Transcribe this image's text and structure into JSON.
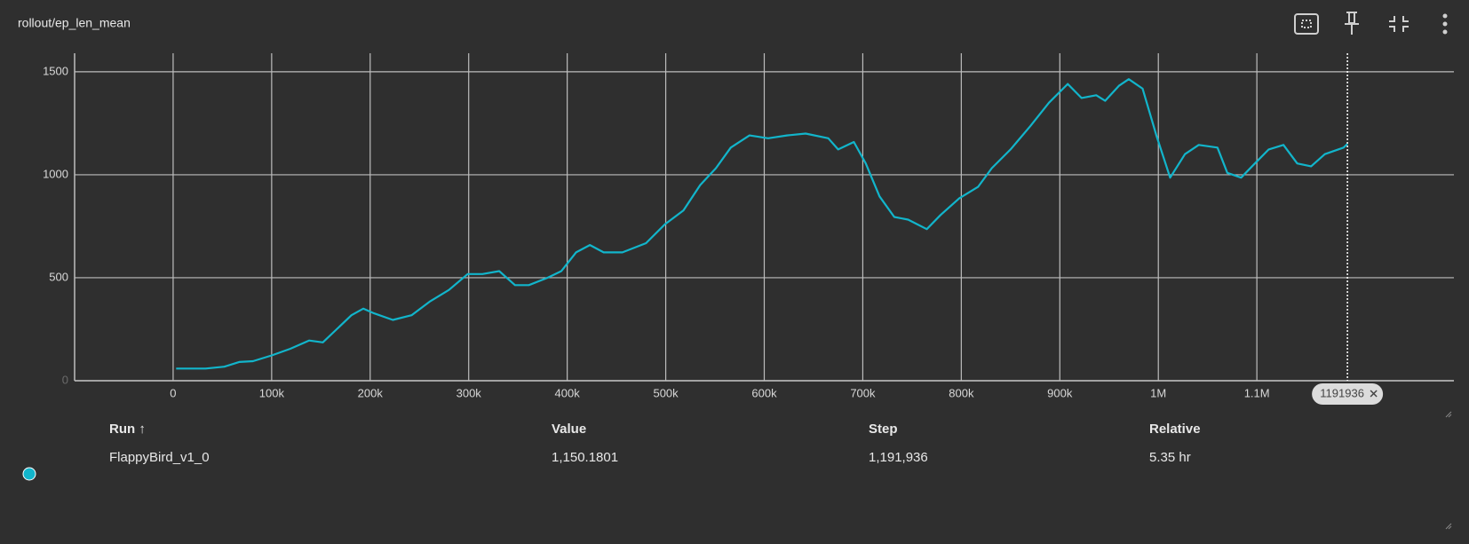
{
  "header": {
    "title": "rollout/ep_len_mean"
  },
  "chart_data": {
    "type": "line",
    "color": "#12b5cb",
    "grid": true,
    "xlim": [
      -100000,
      1300000
    ],
    "ylim": [
      0,
      1590
    ],
    "xticks": [
      0,
      {
        "value": 100000,
        "label": "100k"
      },
      {
        "value": 200000,
        "label": "200k"
      },
      {
        "value": 300000,
        "label": "300k"
      },
      {
        "value": 400000,
        "label": "400k"
      },
      {
        "value": 500000,
        "label": "500k"
      },
      {
        "value": 600000,
        "label": "600k"
      },
      {
        "value": 700000,
        "label": "700k"
      },
      {
        "value": 800000,
        "label": "800k"
      },
      {
        "value": 900000,
        "label": "900k"
      },
      {
        "value": 1000000,
        "label": "1M"
      },
      {
        "value": 1100000,
        "label": "1.1M"
      }
    ],
    "yticks": [
      0,
      500,
      1000,
      1500
    ],
    "cursor": 1191936,
    "x": [
      3000,
      33000,
      52000,
      67000,
      81000,
      100000,
      119000,
      138000,
      152000,
      166000,
      181000,
      193000,
      204000,
      223000,
      242000,
      261000,
      280000,
      299000,
      314000,
      331000,
      347000,
      361000,
      380000,
      394000,
      409000,
      423000,
      437000,
      456000,
      480000,
      499000,
      518000,
      535000,
      551000,
      566000,
      585000,
      604000,
      623000,
      642000,
      665000,
      675000,
      691000,
      703000,
      717000,
      732000,
      746000,
      765000,
      779000,
      798000,
      817000,
      831000,
      850000,
      870000,
      889000,
      908000,
      922000,
      937000,
      946000,
      960000,
      970000,
      984000,
      998000,
      1012000,
      1027000,
      1041000,
      1060000,
      1070000,
      1084000,
      1098000,
      1112000,
      1127000,
      1141000,
      1155000,
      1169000,
      1188000,
      1191936
    ],
    "values": [
      59,
      59,
      68,
      91,
      95,
      123,
      155,
      195,
      186,
      250,
      318,
      350,
      327,
      295,
      318,
      386,
      441,
      518,
      518,
      532,
      464,
      464,
      500,
      532,
      623,
      659,
      623,
      623,
      668,
      759,
      827,
      950,
      1032,
      1132,
      1191,
      1177,
      1191,
      1200,
      1177,
      1123,
      1159,
      1055,
      895,
      795,
      782,
      736,
      805,
      886,
      941,
      1032,
      1123,
      1236,
      1350,
      1441,
      1373,
      1386,
      1359,
      1432,
      1464,
      1418,
      1191,
      986,
      1100,
      1145,
      1132,
      1009,
      986,
      1055,
      1123,
      1145,
      1055,
      1041,
      1100,
      1132,
      1150.1801
    ]
  },
  "table": {
    "columns": [
      "Run ↑",
      "Value",
      "Step",
      "Relative"
    ],
    "rows": [
      [
        "FlappyBird_v1_0",
        "1,150.1801",
        "1,191,936",
        "5.35 hr"
      ]
    ]
  }
}
